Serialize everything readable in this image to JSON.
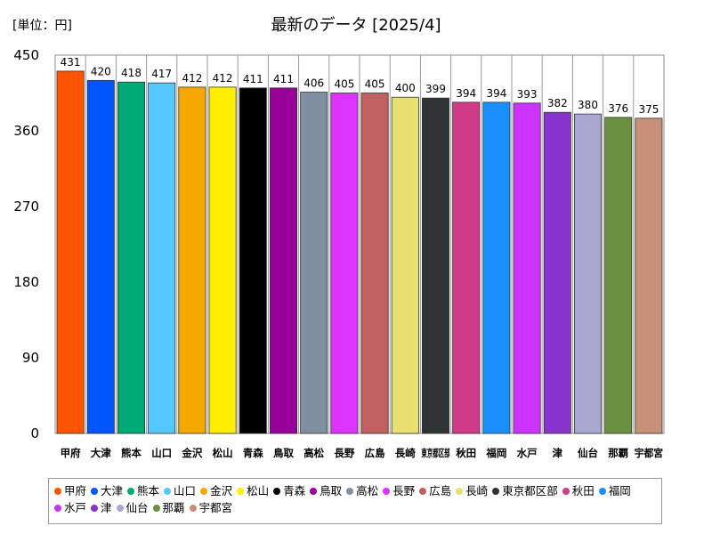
{
  "unit_label": "[単位：円]",
  "title": "最新のデータ [2025/4]",
  "chart_data": {
    "type": "bar",
    "title": "最新のデータ [2025/4]",
    "unit": "[単位：円]",
    "ylim": [
      0,
      450
    ],
    "yticks": [
      0,
      90,
      180,
      270,
      360,
      450
    ],
    "grid": false,
    "legend_position": "bottom",
    "categories": [
      "甲府",
      "大津",
      "熊本",
      "山口",
      "金沢",
      "松山",
      "青森",
      "鳥取",
      "高松",
      "長野",
      "広島",
      "長崎",
      "東京都区部",
      "秋田",
      "福岡",
      "水戸",
      "津",
      "仙台",
      "那覇",
      "宇都宮"
    ],
    "axis_labels": [
      "甲府",
      "大津",
      "熊本",
      "山口",
      "金沢",
      "松山",
      "青森",
      "鳥取",
      "高松",
      "長野",
      "広島",
      "長崎",
      "東京都区部",
      "秋田",
      "福岡",
      "水戸",
      "津",
      "仙台",
      "那覇",
      "宇都宮"
    ],
    "values": [
      431,
      420,
      418,
      417,
      412,
      412,
      411,
      411,
      406,
      405,
      405,
      400,
      399,
      394,
      394,
      393,
      382,
      380,
      376,
      375
    ],
    "colors": [
      "#ff5500",
      "#0055ff",
      "#00aa77",
      "#55c8ff",
      "#f5a800",
      "#ffee00",
      "#000000",
      "#990099",
      "#8090a0",
      "#dd33ff",
      "#c06060",
      "#e8e070",
      "#2e3333",
      "#d03a88",
      "#1a90ff",
      "#cc33ff",
      "#8833cc",
      "#a8a8d0",
      "#6a9040",
      "#c89078"
    ]
  }
}
